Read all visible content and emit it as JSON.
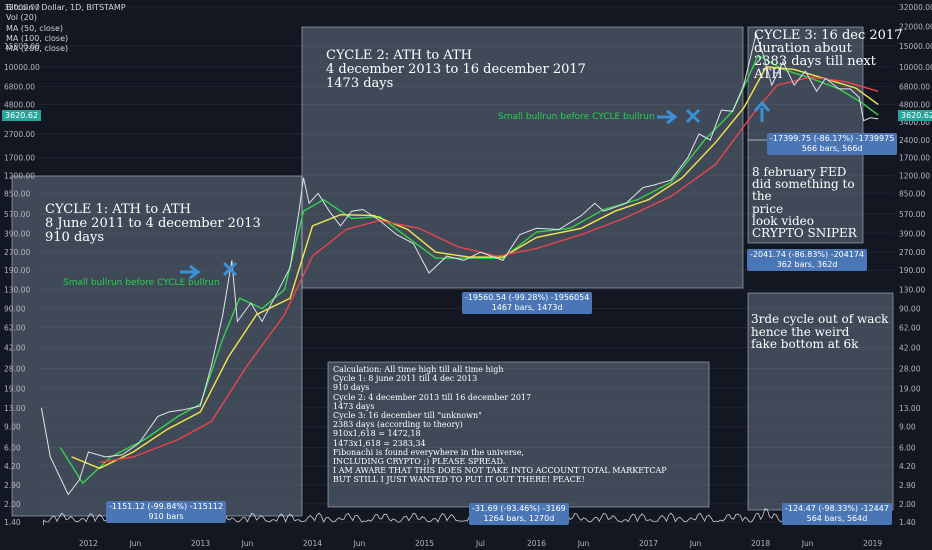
{
  "header": {
    "symbol": "Bitcoin / Dollar, 1D, BITSTAMP",
    "indicators": [
      "Vol (20)",
      "MA (50, close)",
      "MA (100, close)",
      "MA (200, close)"
    ]
  },
  "current_price": "3620.62",
  "chart_data": {
    "type": "line",
    "scale": "log",
    "y_ticks_left": [
      "32000.00",
      "15000.00",
      "10000.00",
      "6800.00",
      "4800.00",
      "2700.00",
      "1700.00",
      "1200.00",
      "850.00",
      "570.00",
      "390.00",
      "270.00",
      "190.00",
      "130.00",
      "90.00",
      "62.00",
      "42.00",
      "28.00",
      "19.00",
      "13.00",
      "9.00",
      "6.00",
      "4.20",
      "2.90",
      "2.00",
      "1.40"
    ],
    "y_ticks_right": [
      "32000.00",
      "22000.00",
      "15000.00",
      "10000.00",
      "6800.00",
      "4800.00",
      "3400.00",
      "2400.00",
      "1700.00",
      "1200.00",
      "850.00",
      "570.00",
      "390.00",
      "270.00",
      "190.00",
      "130.00",
      "90.00",
      "62.00",
      "42.00",
      "28.00",
      "19.00",
      "13.00",
      "9.00",
      "6.00",
      "4.20",
      "2.90",
      "2.00",
      "1.40"
    ],
    "x_ticks": [
      "2012",
      "Jun",
      "2013",
      "Jun",
      "2014",
      "Jun",
      "2015",
      "Jul",
      "2016",
      "Jun",
      "2017",
      "Jun",
      "2018",
      "Jun",
      "2019"
    ],
    "x_range": [
      2011.55,
      2019.2
    ],
    "ylim": [
      1.3,
      34000
    ],
    "price_series": [
      [
        2011.58,
        13
      ],
      [
        2011.66,
        5
      ],
      [
        2011.82,
        2.4
      ],
      [
        2011.92,
        3.2
      ],
      [
        2012.0,
        5.5
      ],
      [
        2012.15,
        5
      ],
      [
        2012.3,
        5.2
      ],
      [
        2012.45,
        6.5
      ],
      [
        2012.62,
        11
      ],
      [
        2012.72,
        12
      ],
      [
        2012.85,
        12.5
      ],
      [
        2013.0,
        13.5
      ],
      [
        2013.1,
        30
      ],
      [
        2013.2,
        80
      ],
      [
        2013.28,
        230
      ],
      [
        2013.33,
        70
      ],
      [
        2013.45,
        100
      ],
      [
        2013.55,
        70
      ],
      [
        2013.68,
        120
      ],
      [
        2013.8,
        200
      ],
      [
        2013.88,
        600
      ],
      [
        2013.92,
        1150
      ],
      [
        2013.97,
        700
      ],
      [
        2014.05,
        850
      ],
      [
        2014.15,
        600
      ],
      [
        2014.25,
        450
      ],
      [
        2014.35,
        600
      ],
      [
        2014.45,
        620
      ],
      [
        2014.6,
        500
      ],
      [
        2014.75,
        380
      ],
      [
        2014.9,
        320
      ],
      [
        2015.04,
        180
      ],
      [
        2015.2,
        250
      ],
      [
        2015.35,
        230
      ],
      [
        2015.5,
        270
      ],
      [
        2015.7,
        230
      ],
      [
        2015.85,
        380
      ],
      [
        2016.0,
        430
      ],
      [
        2016.2,
        420
      ],
      [
        2016.4,
        550
      ],
      [
        2016.52,
        700
      ],
      [
        2016.6,
        600
      ],
      [
        2016.8,
        700
      ],
      [
        2016.95,
        950
      ],
      [
        2017.05,
        1000
      ],
      [
        2017.2,
        1100
      ],
      [
        2017.35,
        1700
      ],
      [
        2017.45,
        2700
      ],
      [
        2017.55,
        2400
      ],
      [
        2017.65,
        4300
      ],
      [
        2017.75,
        4200
      ],
      [
        2017.85,
        7000
      ],
      [
        2017.96,
        19000
      ],
      [
        2018.02,
        13000
      ],
      [
        2018.1,
        7000
      ],
      [
        2018.2,
        11000
      ],
      [
        2018.3,
        7000
      ],
      [
        2018.4,
        9200
      ],
      [
        2018.5,
        6200
      ],
      [
        2018.58,
        8000
      ],
      [
        2018.7,
        6500
      ],
      [
        2018.8,
        6500
      ],
      [
        2018.88,
        5500
      ],
      [
        2018.92,
        3500
      ],
      [
        2018.98,
        3700
      ],
      [
        2019.05,
        3620
      ]
    ],
    "series": [
      {
        "color": "#35d24e",
        "values": [
          [
            2011.75,
            6
          ],
          [
            2011.95,
            3
          ],
          [
            2012.2,
            5
          ],
          [
            2012.5,
            7
          ],
          [
            2012.8,
            11
          ],
          [
            2013.0,
            14
          ],
          [
            2013.2,
            50
          ],
          [
            2013.35,
            110
          ],
          [
            2013.55,
            90
          ],
          [
            2013.75,
            130
          ],
          [
            2013.92,
            600
          ],
          [
            2014.1,
            750
          ],
          [
            2014.35,
            520
          ],
          [
            2014.6,
            540
          ],
          [
            2014.85,
            360
          ],
          [
            2015.1,
            240
          ],
          [
            2015.4,
            240
          ],
          [
            2015.7,
            240
          ],
          [
            2016.0,
            400
          ],
          [
            2016.3,
            430
          ],
          [
            2016.6,
            620
          ],
          [
            2016.9,
            750
          ],
          [
            2017.2,
            1050
          ],
          [
            2017.5,
            2400
          ],
          [
            2017.75,
            4200
          ],
          [
            2017.98,
            12500
          ],
          [
            2018.2,
            9500
          ],
          [
            2018.45,
            8000
          ],
          [
            2018.7,
            6500
          ],
          [
            2018.9,
            5000
          ],
          [
            2019.05,
            3900
          ]
        ]
      },
      {
        "color": "#f2e74a",
        "values": [
          [
            2011.85,
            5
          ],
          [
            2012.1,
            4
          ],
          [
            2012.4,
            5.5
          ],
          [
            2012.7,
            8.5
          ],
          [
            2013.0,
            12
          ],
          [
            2013.25,
            35
          ],
          [
            2013.5,
            80
          ],
          [
            2013.8,
            110
          ],
          [
            2014.0,
            450
          ],
          [
            2014.25,
            560
          ],
          [
            2014.55,
            550
          ],
          [
            2014.85,
            420
          ],
          [
            2015.1,
            270
          ],
          [
            2015.4,
            245
          ],
          [
            2015.7,
            245
          ],
          [
            2016.0,
            360
          ],
          [
            2016.4,
            430
          ],
          [
            2016.7,
            600
          ],
          [
            2017.0,
            750
          ],
          [
            2017.3,
            1150
          ],
          [
            2017.6,
            2300
          ],
          [
            2017.85,
            4500
          ],
          [
            2018.05,
            10000
          ],
          [
            2018.3,
            9500
          ],
          [
            2018.6,
            7800
          ],
          [
            2018.85,
            6600
          ],
          [
            2019.05,
            4800
          ]
        ]
      },
      {
        "color": "#e9454d",
        "values": [
          [
            2012.1,
            4.5
          ],
          [
            2012.4,
            5
          ],
          [
            2012.8,
            7
          ],
          [
            2013.1,
            10
          ],
          [
            2013.4,
            28
          ],
          [
            2013.75,
            80
          ],
          [
            2014.0,
            250
          ],
          [
            2014.3,
            420
          ],
          [
            2014.6,
            500
          ],
          [
            2014.95,
            430
          ],
          [
            2015.3,
            300
          ],
          [
            2015.65,
            250
          ],
          [
            2016.0,
            290
          ],
          [
            2016.4,
            380
          ],
          [
            2016.8,
            530
          ],
          [
            2017.2,
            800
          ],
          [
            2017.6,
            1500
          ],
          [
            2017.95,
            4200
          ],
          [
            2018.15,
            7000
          ],
          [
            2018.45,
            8200
          ],
          [
            2018.75,
            7500
          ],
          [
            2019.05,
            6200
          ]
        ]
      }
    ]
  },
  "annotations": {
    "cycle1": {
      "title": "CYCLE 1: ATH to ATH",
      "line2": "8 June 2011 to 4 december 2013",
      "line3": "910 days"
    },
    "cycle2": {
      "title": "CYCLE 2: ATH to ATH",
      "line2": "4 december 2013 to 16 december 2017",
      "line3": "1473 days"
    },
    "cycle3": {
      "title": "CYCLE 3: 16 dec 2017",
      "line2": "duration about",
      "line3": "2383 days till next",
      "line4": "ATH"
    },
    "fed": "8 february FED\ndid something to\nthe\nprice\nlook video\nCRYPTO SNIPER",
    "third": "3rde cycle out of wack\nhence the weird\nfake bottom at 6k",
    "calc": "Calculation: All time high till all time high\nCycle 1: 8 june 2011 till 4 dec 2013\n910 days\nCycle 2: 4 december 2013 till 16 december 2017\n1473 days\nCycle 3: 16 december till \"unknown\"\n2383 days (according to theory)\n910x1,618 = 1472,18\n1473x1,618 = 2383,34\nFibonachi is found everywhere in the universe,\nINCLUDING CRYPTO ;) PLEASE SPREAD.\nI AM AWARE THAT THIS DOES NOT TAKE INTO ACCOUNT TOTAL MARKETCAP\nBUT STILL I JUST WANTED TO PUT IT OUT THERE! PEACE!",
    "bullrun1": "Small bullrun before CYCLE bullrun",
    "bullrun2": "Small bullrun before CYCLE bullrun"
  },
  "badges": {
    "b1": {
      "l1": "-1151.12 (-99.84%) -115112",
      "l2": "910 bars"
    },
    "b2": {
      "l1": "-19560.54 (-99.28%) -1956054",
      "l2": "1467 bars, 1473d"
    },
    "b3": {
      "l1": "-31.69 (-93.46%) -3169",
      "l2": "1264 bars, 1270d"
    },
    "b4": {
      "l1": "-17399.75 (-86.17%) -1739975",
      "l2": "566 bars, 566d"
    },
    "b5": {
      "l1": "-2041.74 (-86.83%) -204174",
      "l2": "362 bars, 362d"
    },
    "b6": {
      "l1": "-124.47 (-98.33%) -12447",
      "l2": "564 bars, 564d"
    }
  }
}
